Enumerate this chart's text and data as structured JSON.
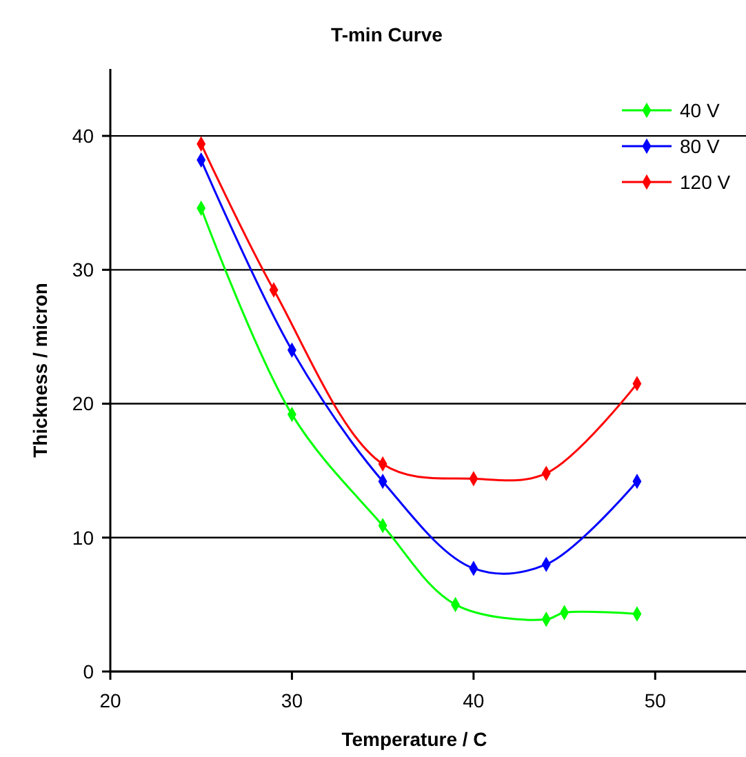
{
  "chart_data": {
    "type": "line",
    "title": "T-min Curve",
    "xlabel": "Temperature / C",
    "ylabel": "Thickness / micron",
    "xlim": [
      20,
      55
    ],
    "xticks": [
      20,
      30,
      40,
      50
    ],
    "ylim": [
      0,
      45
    ],
    "yticks": [
      0,
      10,
      20,
      30,
      40
    ],
    "grid": "y",
    "legend": "top right",
    "marker": "diamond",
    "line_style": "solid",
    "series": [
      {
        "name": "40 V",
        "color": "#00ff00",
        "x": [
          25,
          30,
          35,
          39,
          44,
          45,
          49
        ],
        "values": [
          34.6,
          19.2,
          10.9,
          5.0,
          3.9,
          4.4,
          4.3
        ]
      },
      {
        "name": "80 V",
        "color": "#0000ff",
        "x": [
          25,
          30,
          35,
          40,
          44,
          49
        ],
        "values": [
          38.2,
          24.0,
          14.2,
          7.7,
          8.0,
          14.2
        ]
      },
      {
        "name": "120 V",
        "color": "#ff0000",
        "x": [
          25,
          29,
          35,
          40,
          44,
          49
        ],
        "values": [
          39.4,
          28.5,
          15.5,
          14.4,
          14.8,
          21.5
        ]
      }
    ]
  }
}
